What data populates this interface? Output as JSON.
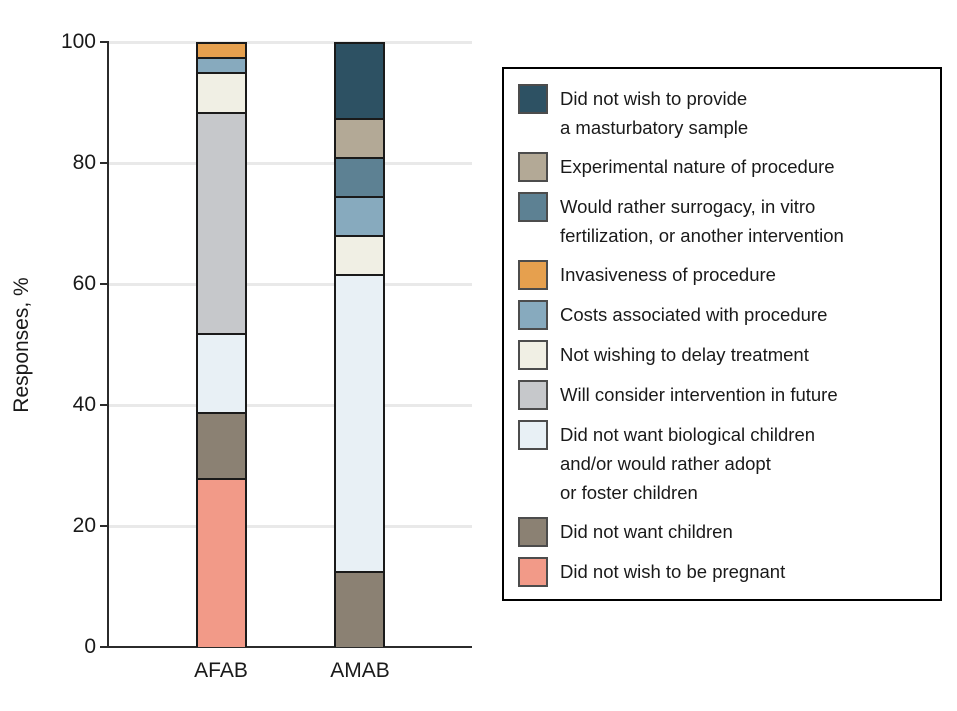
{
  "chart_data": {
    "type": "bar",
    "stacked": true,
    "title": "",
    "xlabel": "",
    "ylabel": "Responses, %",
    "ylim": [
      0,
      100
    ],
    "yticks": [
      0,
      20,
      40,
      60,
      80,
      100
    ],
    "grid": "horizontal",
    "legend_position": "right",
    "categories": [
      "AFAB",
      "AMAB"
    ],
    "series": [
      {
        "name": "Did not wish to provide a masturbatory sample",
        "lines": [
          "Did not wish to provide",
          "a masturbatory sample"
        ],
        "color": "#2d5163",
        "values": [
          0,
          12.5
        ]
      },
      {
        "name": "Experimental nature of procedure",
        "lines": [
          "Experimental nature of procedure"
        ],
        "color": "#b3a996",
        "values": [
          0,
          6.3
        ]
      },
      {
        "name": "Would rather surrogacy, in vitro fertilization, or another intervention",
        "lines": [
          "Would rather surrogacy, in vitro",
          "fertilization, or another intervention"
        ],
        "color": "#5d8193",
        "values": [
          0,
          6.3
        ]
      },
      {
        "name": "Invasiveness of procedure",
        "lines": [
          "Invasiveness of procedure"
        ],
        "color": "#e6a04e",
        "values": [
          2.2,
          0
        ]
      },
      {
        "name": "Costs associated with procedure",
        "lines": [
          "Costs associated with procedure"
        ],
        "color": "#87aabe",
        "values": [
          2.2,
          6.3
        ]
      },
      {
        "name": "Not wishing to delay treatment",
        "lines": [
          "Not wishing to delay treatment"
        ],
        "color": "#f0efe4",
        "values": [
          6.5,
          6.3
        ]
      },
      {
        "name": "Will consider intervention in future",
        "lines": [
          "Will consider intervention in future"
        ],
        "color": "#c6c8cb",
        "values": [
          37.0,
          0
        ]
      },
      {
        "name": "Did not want biological children and/or would rather adopt or foster children",
        "lines": [
          "Did not want biological children",
          "and/or would rather adopt",
          "or foster children"
        ],
        "color": "#e8f0f5",
        "values": [
          13.0,
          50.0
        ]
      },
      {
        "name": "Did not want children",
        "lines": [
          "Did not want children"
        ],
        "color": "#8b8173",
        "values": [
          10.9,
          12.5
        ]
      },
      {
        "name": "Did not wish to be pregnant",
        "lines": [
          "Did not wish to be pregnant"
        ],
        "color": "#f29a88",
        "values": [
          28.3,
          0
        ]
      }
    ]
  }
}
